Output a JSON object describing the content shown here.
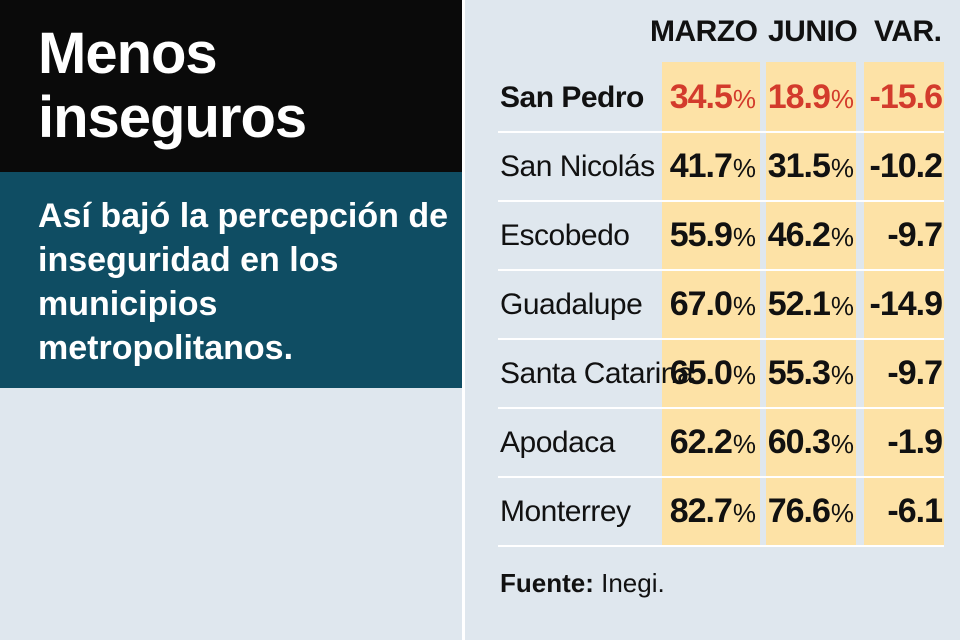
{
  "title": "Menos inseguros",
  "subtitle": "Así bajó la percepción de inseguridad en los municipios metropolitanos.",
  "source_label": "Fuente:",
  "source_value": "Inegi.",
  "colors": {
    "title_bg": "#0a0a0a",
    "subtitle_bg": "#0f4d63",
    "highlight_cell": "#fde2a6",
    "highlight_text": "#d33b2c",
    "background": "#dfe7ee"
  },
  "chart_data": {
    "type": "table",
    "title": "Menos inseguros",
    "columns": [
      "MARZO",
      "JUNIO",
      "VAR."
    ],
    "rows": [
      {
        "municipio": "San Pedro",
        "marzo": "34.5",
        "junio": "18.9",
        "var": "-15.6",
        "highlight": true
      },
      {
        "municipio": "San Nicolás",
        "marzo": "41.7",
        "junio": "31.5",
        "var": "-10.2"
      },
      {
        "municipio": "Escobedo",
        "marzo": "55.9",
        "junio": "46.2",
        "var": "-9.7"
      },
      {
        "municipio": "Guadalupe",
        "marzo": "67.0",
        "junio": "52.1",
        "var": "-14.9"
      },
      {
        "municipio": "Santa Catarina",
        "marzo": "65.0",
        "junio": "55.3",
        "var": "-9.7"
      },
      {
        "municipio": "Apodaca",
        "marzo": "62.2",
        "junio": "60.3",
        "var": "-1.9"
      },
      {
        "municipio": "Monterrey",
        "marzo": "82.7",
        "junio": "76.6",
        "var": "-6.1"
      }
    ],
    "unit": "%"
  }
}
